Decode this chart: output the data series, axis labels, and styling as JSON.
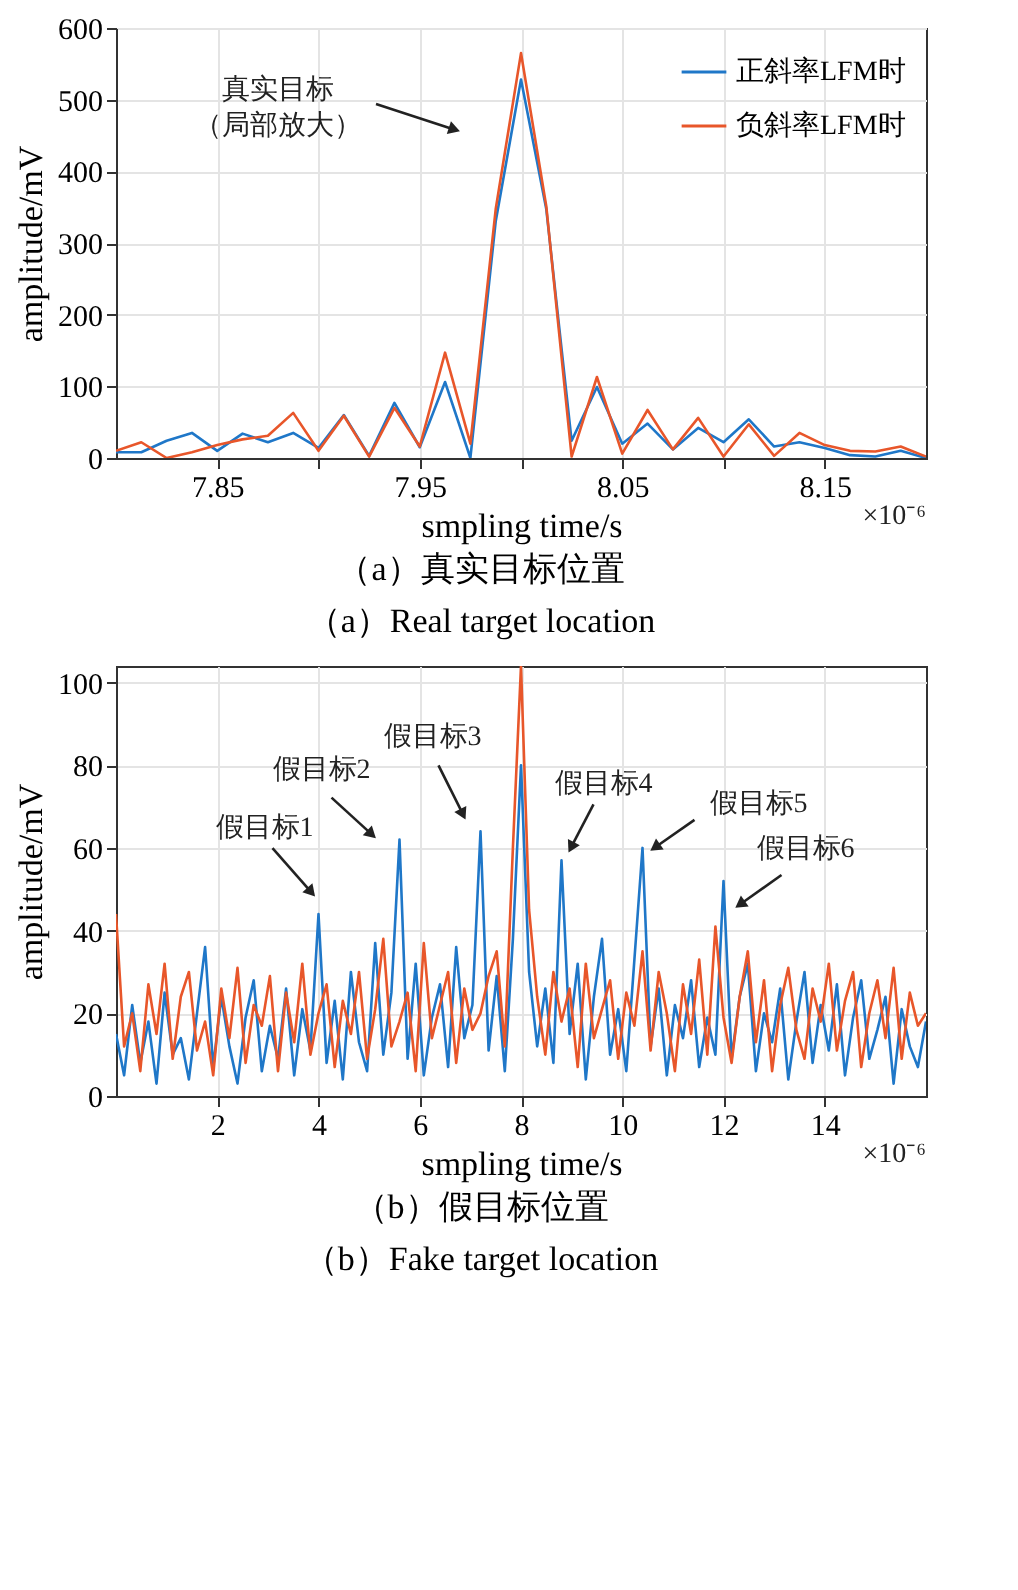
{
  "chart_data": [
    {
      "type": "line",
      "xlabel": "smpling time/s",
      "ylabel": "amplitude/mV",
      "x": [
        7.8,
        7.8125,
        7.825,
        7.8375,
        7.85,
        7.8625,
        7.875,
        7.8875,
        7.9,
        7.9125,
        7.925,
        7.9375,
        7.95,
        7.9625,
        7.975,
        7.9875,
        8.0,
        8.0125,
        8.025,
        8.0375,
        8.05,
        8.0625,
        8.075,
        8.0875,
        8.1,
        8.1125,
        8.125,
        8.1375,
        8.15,
        8.1625,
        8.175,
        8.1875,
        8.2
      ],
      "series": [
        {
          "name": "正斜率LFM时",
          "color": "#1f77c8",
          "values": [
            8,
            8,
            24,
            35,
            10,
            34,
            22,
            35,
            14,
            60,
            3,
            77,
            15,
            106,
            0,
            330,
            528,
            347,
            24,
            99,
            20,
            48,
            12,
            42,
            22,
            54,
            16,
            22,
            14,
            4,
            2,
            10,
            0
          ]
        },
        {
          "name": "负斜率LFM时",
          "color": "#e8562a",
          "values": [
            10,
            22,
            0,
            8,
            18,
            26,
            31,
            63,
            10,
            59,
            2,
            70,
            16,
            147,
            20,
            347,
            565,
            351,
            2,
            113,
            6,
            67,
            12,
            56,
            2,
            47,
            3,
            35,
            18,
            10,
            9,
            16,
            2
          ]
        }
      ],
      "xlim": [
        7.8,
        8.2
      ],
      "xticks": [
        7.85,
        {
          "value": 7.9,
          "label": null
        },
        7.95,
        {
          "value": 8.0,
          "label": null
        },
        8.05,
        {
          "value": 8.1,
          "label": null
        },
        8.15
      ],
      "ylim": [
        0,
        600
      ],
      "yticks": [
        0,
        100,
        200,
        300,
        400,
        500,
        600
      ],
      "grid": true,
      "legend": "top right",
      "annotations": [
        "真实目标",
        "（局部放大）",
        "×10⁻⁶",
        "（a）真实目标位置",
        "（a）Real target location"
      ]
    },
    {
      "type": "line",
      "xlabel": "smpling time/s",
      "ylabel": "amplitude/mV",
      "x": [
        0,
        0.16,
        0.32,
        0.48,
        0.64,
        0.8,
        0.96,
        1.12,
        1.28,
        1.44,
        1.6,
        1.76,
        1.92,
        2.08,
        2.24,
        2.4,
        2.56,
        2.72,
        2.88,
        3.04,
        3.2,
        3.36,
        3.52,
        3.68,
        3.84,
        4.0,
        4.16,
        4.32,
        4.48,
        4.64,
        4.8,
        4.96,
        5.12,
        5.28,
        5.44,
        5.6,
        5.76,
        5.92,
        6.08,
        6.24,
        6.4,
        6.56,
        6.72,
        6.88,
        7.04,
        7.2,
        7.36,
        7.52,
        7.68,
        7.84,
        8.0,
        8.16,
        8.32,
        8.48,
        8.64,
        8.8,
        8.96,
        9.12,
        9.28,
        9.44,
        9.6,
        9.76,
        9.92,
        10.08,
        10.24,
        10.4,
        10.56,
        10.72,
        10.88,
        11.04,
        11.2,
        11.36,
        11.52,
        11.68,
        11.84,
        12.0,
        12.16,
        12.32,
        12.48,
        12.64,
        12.8,
        12.96,
        13.12,
        13.28,
        13.44,
        13.6,
        13.76,
        13.92,
        14.08,
        14.24,
        14.4,
        14.56,
        14.72,
        14.88,
        15.04,
        15.2,
        15.36,
        15.52,
        15.68,
        15.84,
        16.0
      ],
      "series": [
        {
          "name": "正斜率LFM时",
          "color": "#1f77c8",
          "values": [
            15,
            5,
            22,
            8,
            18,
            3,
            25,
            10,
            14,
            4,
            20,
            36,
            7,
            24,
            12,
            3,
            19,
            28,
            6,
            17,
            9,
            26,
            5,
            21,
            11,
            44,
            8,
            23,
            4,
            30,
            13,
            6,
            37,
            10,
            25,
            62,
            9,
            32,
            5,
            19,
            27,
            7,
            36,
            14,
            22,
            64,
            11,
            29,
            6,
            38,
            80,
            30,
            12,
            26,
            8,
            57,
            15,
            32,
            4,
            24,
            38,
            10,
            21,
            6,
            33,
            60,
            12,
            26,
            5,
            22,
            14,
            28,
            7,
            19,
            10,
            52,
            9,
            24,
            32,
            6,
            20,
            13,
            26,
            4,
            18,
            30,
            8,
            22,
            11,
            27,
            5,
            19,
            28,
            9,
            16,
            24,
            3,
            21,
            12,
            7,
            18
          ]
        },
        {
          "name": "负斜率LFM时",
          "color": "#e8562a",
          "values": [
            44,
            12,
            20,
            6,
            27,
            15,
            32,
            9,
            24,
            30,
            11,
            18,
            5,
            26,
            14,
            31,
            8,
            22,
            17,
            29,
            6,
            25,
            13,
            32,
            10,
            20,
            27,
            7,
            23,
            15,
            30,
            9,
            21,
            38,
            12,
            18,
            25,
            6,
            37,
            14,
            22,
            30,
            8,
            26,
            16,
            20,
            29,
            35,
            12,
            60,
            104,
            45,
            24,
            10,
            30,
            18,
            26,
            7,
            32,
            14,
            21,
            28,
            9,
            25,
            17,
            35,
            11,
            30,
            20,
            6,
            27,
            15,
            33,
            10,
            41,
            19,
            8,
            24,
            35,
            13,
            28,
            6,
            22,
            31,
            16,
            9,
            26,
            18,
            32,
            11,
            23,
            30,
            7,
            20,
            28,
            14,
            31,
            9,
            25,
            17,
            20
          ]
        }
      ],
      "xlim": [
        0,
        16
      ],
      "xticks": [
        2,
        4,
        6,
        8,
        10,
        12,
        14
      ],
      "ylim": [
        0,
        104
      ],
      "yticks": [
        0,
        20,
        40,
        60,
        80,
        100
      ],
      "grid": true,
      "legend": "top right",
      "annotations": [
        {
          "text": "假目标1",
          "x": 4.0,
          "y": 44
        },
        {
          "text": "假目标2",
          "x": 5.6,
          "y": 62
        },
        {
          "text": "假目标3",
          "x": 7.2,
          "y": 64
        },
        {
          "text": "假目标4",
          "x": 8.8,
          "y": 57
        },
        {
          "text": "假目标5",
          "x": 10.4,
          "y": 60
        },
        {
          "text": "假目标6",
          "x": 12.0,
          "y": 52
        },
        "×10⁻⁶",
        "（b）假目标位置",
        "（b）Fake target location"
      ]
    }
  ]
}
